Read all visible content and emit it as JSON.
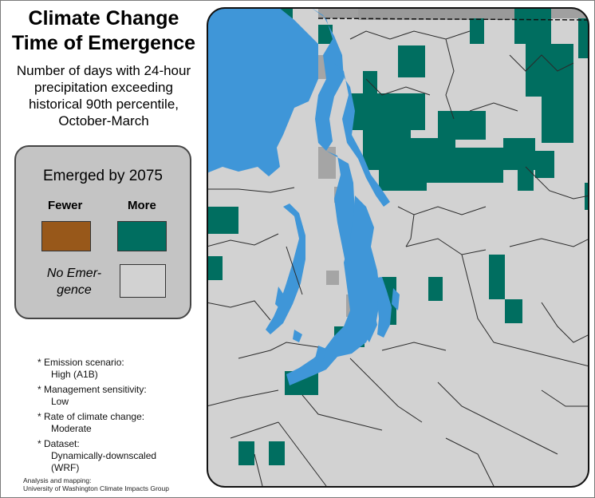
{
  "title": {
    "line1": "Climate Change",
    "line2": "Time of Emergence"
  },
  "subtitle": {
    "line1": "Number of days with 24-hour",
    "line2": "precipitation exceeding",
    "line3": "historical 90th percentile,",
    "line4": "October-March"
  },
  "legend": {
    "title": "Emerged by 2075",
    "fewer_label": "Fewer",
    "more_label": "More",
    "no_emergence_line1": "No Emer-",
    "no_emergence_line2": "gence",
    "colors": {
      "fewer": "#98581a",
      "more": "#006e60",
      "no_emergence": "#d2d2d2"
    }
  },
  "notes": [
    {
      "label": "* Emission scenario:",
      "value": "High (A1B)"
    },
    {
      "label": "* Management sensitivity:",
      "value": "Low"
    },
    {
      "label": "* Rate of climate change:",
      "value": "Moderate"
    },
    {
      "label": "* Dataset:",
      "value_line1": "Dynamically-downscaled",
      "value_line2": "(WRF)"
    }
  ],
  "credit": {
    "line1": "Analysis and mapping:",
    "line2": "University of Washington Climate Impacts Group"
  },
  "map": {
    "colors": {
      "land": "#d2d2d2",
      "water": "#3f96d8",
      "outside": "#a0a0a0",
      "emerged_more": "#006e60",
      "boundary": "#2a2a2a"
    }
  }
}
